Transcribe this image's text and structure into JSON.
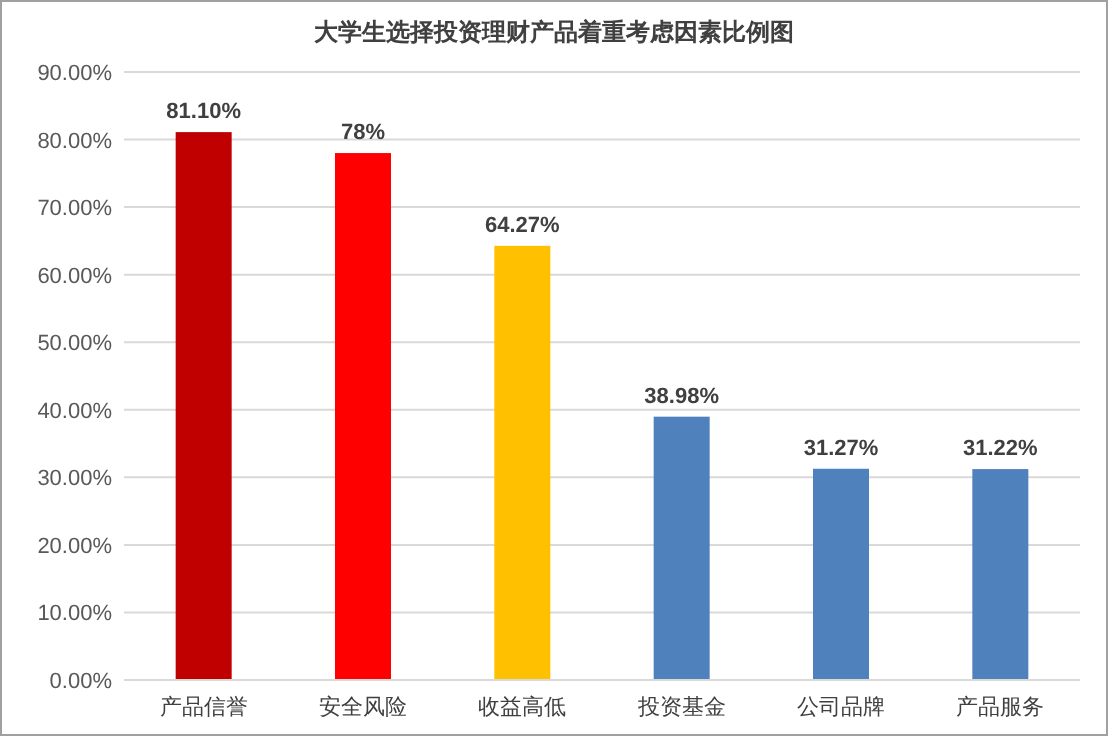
{
  "chart_data": {
    "type": "bar",
    "title": "大学生选择投资理财产品着重考虑因素比例图",
    "categories": [
      "产品信誉",
      "安全风险",
      "收益高低",
      "投资基金",
      "公司品牌",
      "产品服务"
    ],
    "values": [
      81.1,
      78,
      64.27,
      38.98,
      31.27,
      31.22
    ],
    "value_labels": [
      "81.10%",
      "78%",
      "64.27%",
      "38.98%",
      "31.27%",
      "31.22%"
    ],
    "colors": [
      "#c00000",
      "#ff0000",
      "#ffc000",
      "#4f81bd",
      "#4f81bd",
      "#4f81bd"
    ],
    "ylim": [
      0,
      90
    ],
    "yticks": [
      {
        "value": 0,
        "label": "0.00%"
      },
      {
        "value": 10,
        "label": "10.00%"
      },
      {
        "value": 20,
        "label": "20.00%"
      },
      {
        "value": 30,
        "label": "30.00%"
      },
      {
        "value": 40,
        "label": "40.00%"
      },
      {
        "value": 50,
        "label": "50.00%"
      },
      {
        "value": 60,
        "label": "60.00%"
      },
      {
        "value": 70,
        "label": "70.00%"
      },
      {
        "value": 80,
        "label": "80.00%"
      },
      {
        "value": 90,
        "label": "90.00%"
      }
    ],
    "grid": "y"
  }
}
